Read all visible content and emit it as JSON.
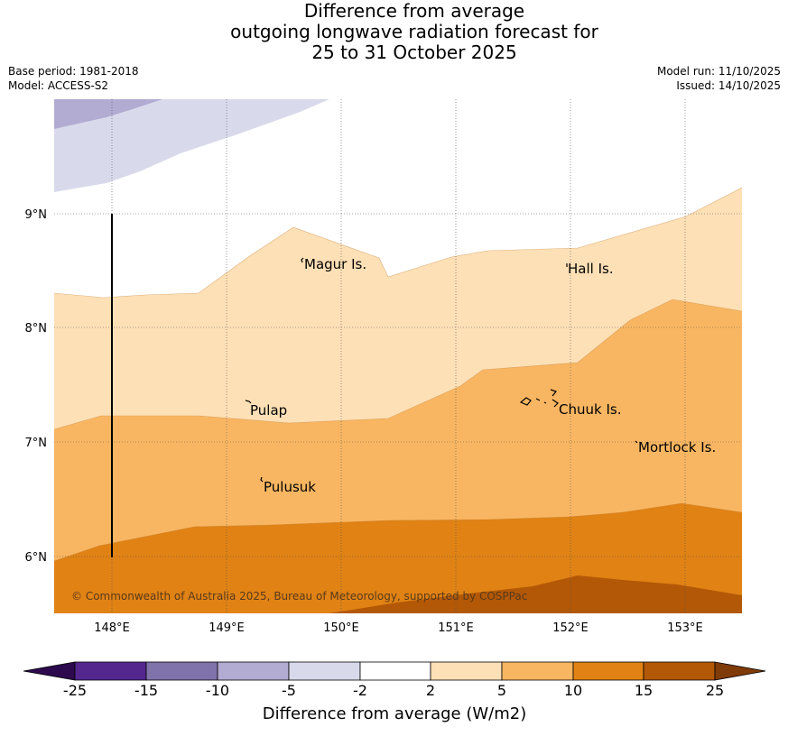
{
  "title_lines": [
    "Difference from average",
    "outgoing longwave radiation forecast for",
    "25 to 31 October 2025"
  ],
  "meta": {
    "base_period": "Base period: 1981-2018",
    "model": "Model: ACCESS-S2",
    "model_run": "Model run: 11/10/2025",
    "issued": "Issued: 14/10/2025"
  },
  "axes": {
    "longitude_labels": [
      "148°E",
      "149°E",
      "150°E",
      "151°E",
      "152°E",
      "153°E"
    ],
    "latitude_labels": [
      "9°N",
      "8°N",
      "7°N",
      "6°N"
    ]
  },
  "places": [
    "Magur Is.",
    "Hall Is.",
    "Pulap",
    "Chuuk Is.",
    "Mortlock Is.",
    "Pulusuk"
  ],
  "copyright": "© Commonwealth of Australia 2025, Bureau of Meteorology, supported by COSPPac",
  "colorbar": {
    "labels": [
      "-25",
      "-15",
      "-10",
      "-5",
      "-2",
      "2",
      "5",
      "10",
      "15",
      "25"
    ],
    "colors": {
      "below_min": "#2d0a4e",
      "lt_-15": "#54278f",
      "lt_-10": "#8073ac",
      "lt_-5": "#b2abd2",
      "lt_-2": "#d8daeb",
      "neutral": "#ffffff",
      "gt_2": "#fee0b6",
      "gt_5": "#f9b662",
      "gt_10": "#e08214",
      "gt_15": "#b35806",
      "above_max": "#7f3b08"
    },
    "title": "Difference from average (W/m2)"
  }
}
